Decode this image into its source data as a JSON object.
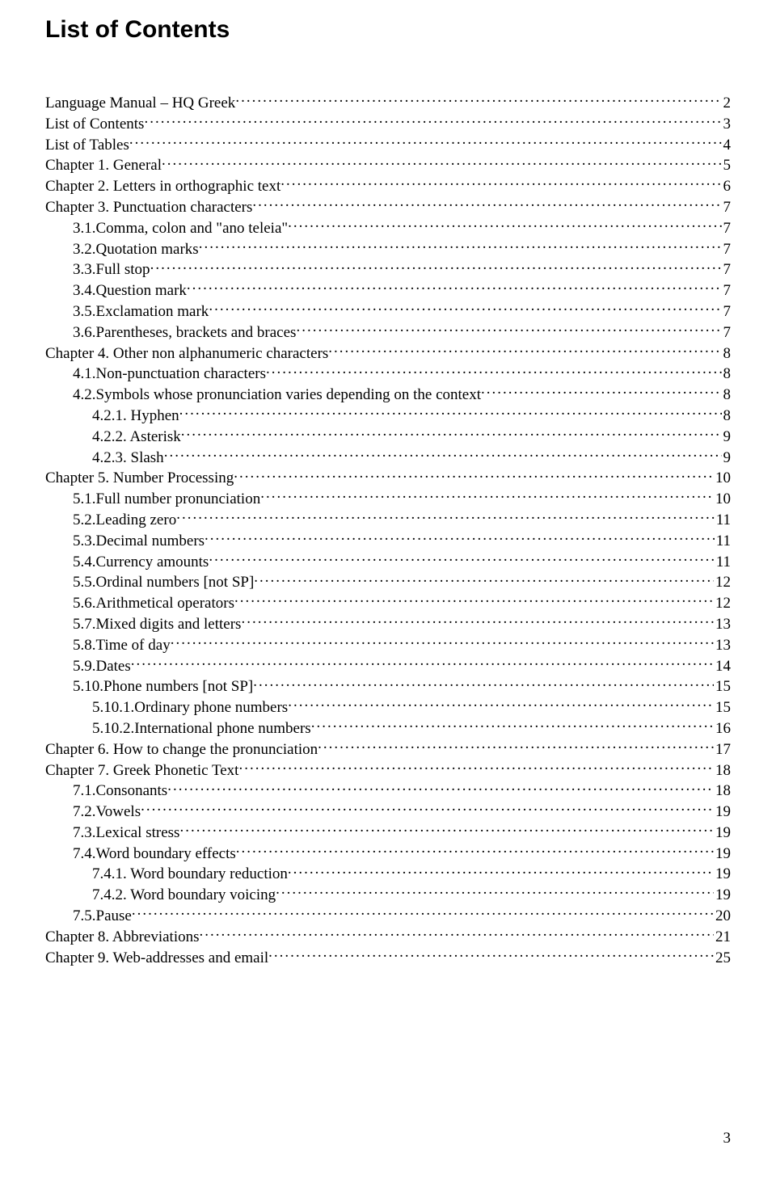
{
  "title": "List of Contents",
  "pageNumber": "3",
  "style": {
    "titleFontSize": 30,
    "bodyFontSize": 19,
    "titleColor": "#000000",
    "textColor": "#000000",
    "background": "#ffffff",
    "leaderChar": "."
  },
  "toc": [
    {
      "label": "Language Manual – HQ Greek",
      "page": "2",
      "indent": 0
    },
    {
      "label": "List of Contents",
      "page": "3",
      "indent": 0
    },
    {
      "label": "List of Tables",
      "page": "4",
      "indent": 0
    },
    {
      "label": "Chapter 1.  General",
      "page": "5",
      "indent": 0
    },
    {
      "label": "Chapter 2.  Letters in orthographic text",
      "page": "6",
      "indent": 0
    },
    {
      "label": "Chapter 3.  Punctuation characters",
      "page": "7",
      "indent": 0
    },
    {
      "label": "3.1.Comma, colon and \"ano teleia\" ",
      "page": "7",
      "indent": 1
    },
    {
      "label": "3.2.Quotation marks",
      "page": "7",
      "indent": 1
    },
    {
      "label": "3.3.Full stop",
      "page": "7",
      "indent": 1
    },
    {
      "label": "3.4.Question mark",
      "page": "7",
      "indent": 1
    },
    {
      "label": "3.5.Exclamation mark",
      "page": "7",
      "indent": 1
    },
    {
      "label": "3.6.Parentheses, brackets and braces",
      "page": "7",
      "indent": 1
    },
    {
      "label": "Chapter 4.  Other non alphanumeric characters",
      "page": "8",
      "indent": 0
    },
    {
      "label": "4.1.Non-punctuation characters",
      "page": "8",
      "indent": 1
    },
    {
      "label": "4.2.Symbols whose pronunciation varies depending on the context",
      "page": "8",
      "indent": 1
    },
    {
      "label": "4.2.1. Hyphen",
      "page": "8",
      "indent": 2
    },
    {
      "label": "4.2.2. Asterisk",
      "page": "9",
      "indent": 2
    },
    {
      "label": "4.2.3. Slash",
      "page": "9",
      "indent": 2
    },
    {
      "label": "Chapter 5.  Number Processing",
      "page": "10",
      "indent": 0
    },
    {
      "label": "5.1.Full number pronunciation",
      "page": "10",
      "indent": 1
    },
    {
      "label": "5.2.Leading zero",
      "page": "11",
      "indent": 1
    },
    {
      "label": "5.3.Decimal numbers",
      "page": "11",
      "indent": 1
    },
    {
      "label": "5.4.Currency amounts",
      "page": "11",
      "indent": 1
    },
    {
      "label": "5.5.Ordinal numbers [not SP]",
      "page": "12",
      "indent": 1
    },
    {
      "label": "5.6.Arithmetical operators",
      "page": "12",
      "indent": 1
    },
    {
      "label": "5.7.Mixed digits and letters",
      "page": "13",
      "indent": 1
    },
    {
      "label": "5.8.Time of day",
      "page": "13",
      "indent": 1
    },
    {
      "label": "5.9.Dates",
      "page": "14",
      "indent": 1
    },
    {
      "label": "5.10.Phone numbers  [not SP]",
      "page": "15",
      "indent": 1
    },
    {
      "label": "5.10.1.Ordinary phone numbers",
      "page": "15",
      "indent": 2
    },
    {
      "label": "5.10.2.International phone numbers",
      "page": "16",
      "indent": 2
    },
    {
      "label": "Chapter 6.  How to change the pronunciation ",
      "page": "17",
      "indent": 0
    },
    {
      "label": "Chapter 7.  Greek Phonetic Text",
      "page": "18",
      "indent": 0
    },
    {
      "label": "7.1.Consonants ",
      "page": "18",
      "indent": 1
    },
    {
      "label": "7.2.Vowels",
      "page": "19",
      "indent": 1
    },
    {
      "label": "7.3.Lexical stress",
      "page": "19",
      "indent": 1
    },
    {
      "label": "7.4.Word boundary effects",
      "page": "19",
      "indent": 1
    },
    {
      "label": "7.4.1. Word boundary reduction",
      "page": "19",
      "indent": 2
    },
    {
      "label": "7.4.2. Word boundary voicing",
      "page": "19",
      "indent": 2
    },
    {
      "label": "7.5.Pause",
      "page": "20",
      "indent": 1
    },
    {
      "label": "Chapter 8.  Abbreviations",
      "page": "21",
      "indent": 0
    },
    {
      "label": "Chapter 9.  Web-addresses and email",
      "page": "25",
      "indent": 0
    }
  ]
}
